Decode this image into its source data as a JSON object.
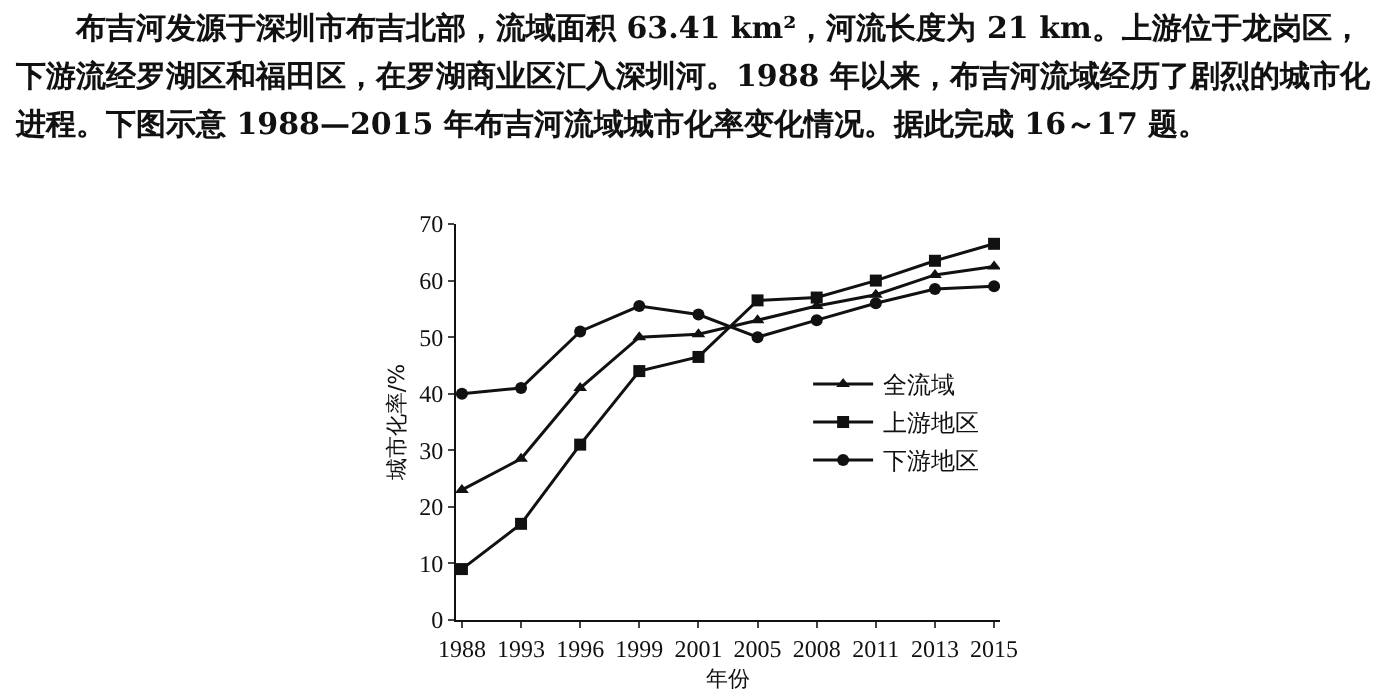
{
  "chart_data": {
    "type": "line",
    "annotations": [
      "布吉河发源于深圳市布吉北部，流域面积 63.41 km²，河流长度为 21 km。上游位于龙岗区，下游流经罗湖区和福田区，在罗湖商业区汇入深圳河。1988 年以来，布吉河流域经历了剧烈的城市化进程。下图示意 1988—2015 年布吉河流域城市化率变化情况。据此完成 16～17 题。"
    ],
    "xlabel": "年份",
    "ylabel": "城市化率/%",
    "categories": [
      "1988",
      "1993",
      "1996",
      "1999",
      "2001",
      "2005",
      "2008",
      "2011",
      "2013",
      "2015"
    ],
    "series": [
      {
        "name": "全流域",
        "color": "#111111",
        "marker": "triangle",
        "values": [
          23,
          28.5,
          41,
          50,
          50.5,
          53,
          55.5,
          57.5,
          61,
          62.5
        ]
      },
      {
        "name": "上游地区",
        "color": "#111111",
        "marker": "square",
        "values": [
          9,
          17,
          31,
          44,
          46.5,
          56.5,
          57,
          60,
          63.5,
          66.5
        ]
      },
      {
        "name": "下游地区",
        "color": "#111111",
        "marker": "circle",
        "values": [
          40,
          41,
          51,
          55.5,
          54,
          50,
          53,
          56,
          58.5,
          59
        ]
      }
    ],
    "ylim": [
      0,
      70
    ],
    "yticks": [
      0,
      10,
      20,
      30,
      40,
      50,
      60,
      70
    ],
    "grid": false,
    "legend": "right",
    "line_style": "solid"
  }
}
